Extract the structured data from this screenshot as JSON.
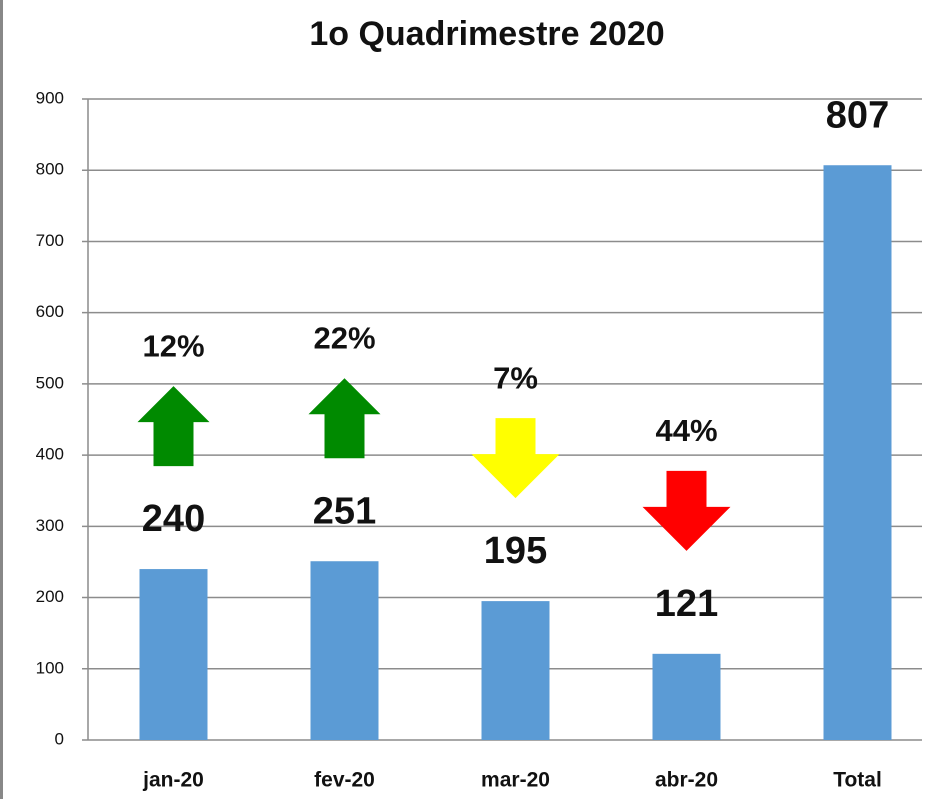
{
  "chart_data": {
    "type": "bar",
    "title": "1o Quadrimestre 2020",
    "categories": [
      "jan-20",
      "fev-20",
      "mar-20",
      "abr-20",
      "Total"
    ],
    "values": [
      240,
      251,
      195,
      121,
      807
    ],
    "color": "#5b9bd5",
    "ylim": [
      0,
      900
    ],
    "yticks": [
      0,
      100,
      200,
      300,
      400,
      500,
      600,
      700,
      800,
      900
    ],
    "grid": true,
    "annotations": [
      {
        "text": "12%",
        "direction": "up",
        "color": "#008a00"
      },
      {
        "text": "22%",
        "direction": "up",
        "color": "#008a00"
      },
      {
        "text": "7%",
        "direction": "down",
        "color": "#ffff00"
      },
      {
        "text": "44%",
        "direction": "down",
        "color": "#ff0000"
      }
    ]
  }
}
